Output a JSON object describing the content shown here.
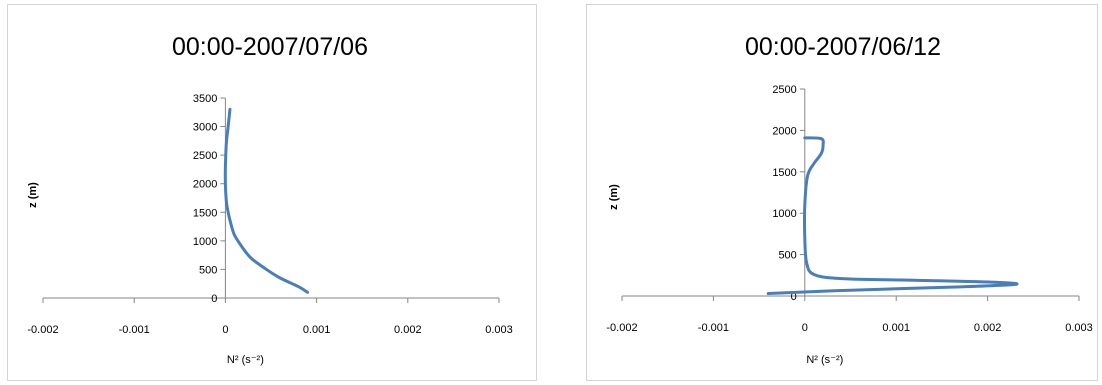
{
  "chart_data": [
    {
      "type": "line",
      "title": "00:00-2007/07/06",
      "xlabel": "N² (s⁻²)",
      "ylabel": "z (m)",
      "xlim": [
        -0.002,
        0.003
      ],
      "ylim": [
        0,
        3500
      ],
      "xticks": [
        "-0.002",
        "-0.001",
        "0",
        "0.001",
        "0.002",
        "0.003"
      ],
      "yticks": [
        "0",
        "500",
        "1000",
        "1500",
        "2000",
        "2500",
        "3000",
        "3500"
      ],
      "grid": false,
      "series": [
        {
          "color": "#4a7ebb",
          "x": [
            0.0009,
            0.0008,
            0.0006,
            0.00045,
            0.00028,
            0.00018,
            0.0001,
            6e-05,
            3e-05,
            1e-05,
            0.0,
            0.0,
            1e-05,
            3e-05,
            5e-05
          ],
          "y": [
            100,
            200,
            350,
            500,
            700,
            900,
            1100,
            1300,
            1500,
            1700,
            2000,
            2300,
            2700,
            3000,
            3300
          ]
        }
      ]
    },
    {
      "type": "line",
      "title": "00:00-2007/06/12",
      "xlabel": "N² (s⁻²)",
      "ylabel": "z (m)",
      "xlim": [
        -0.002,
        0.003
      ],
      "ylim": [
        0,
        2500
      ],
      "xticks": [
        "-0.002",
        "-0.001",
        "0",
        "0.001",
        "0.002",
        "0.003"
      ],
      "yticks": [
        "0",
        "500",
        "1000",
        "1500",
        "2000",
        "2500"
      ],
      "grid": false,
      "series": [
        {
          "color": "#4a7ebb",
          "x": [
            -0.0004,
            0.0005,
            0.0017,
            0.0023,
            0.0021,
            0.0012,
            0.0004,
            0.0001,
            2e-05,
            0.0,
            0.0,
            3e-05,
            0.0001,
            0.00018,
            0.0002,
            0.00018,
            0.0
          ],
          "y": [
            30,
            70,
            110,
            140,
            165,
            190,
            210,
            260,
            400,
            700,
            1100,
            1450,
            1600,
            1720,
            1820,
            1900,
            1910
          ]
        }
      ]
    }
  ]
}
